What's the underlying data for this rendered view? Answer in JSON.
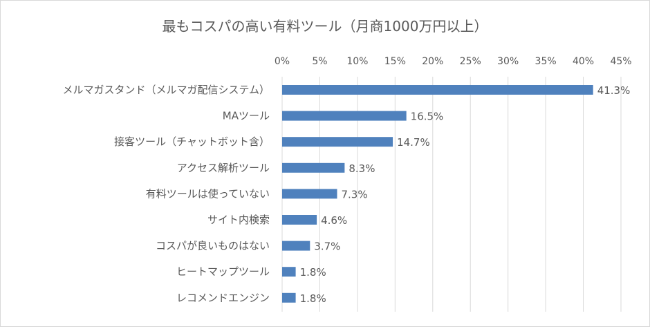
{
  "chart_data": {
    "type": "bar",
    "orientation": "horizontal",
    "title": "最もコスパの高い有料ツール（月商1000万円以上）",
    "categories": [
      "メルマガスタンド（メルマガ配信システム）",
      "MAツール",
      "接客ツール（チャットボット含）",
      "アクセス解析ツール",
      "有料ツールは使っていない",
      "サイト内検索",
      "コスパが良いものはない",
      "ヒートマップツール",
      "レコメンドエンジン"
    ],
    "values": [
      41.3,
      16.5,
      14.7,
      8.3,
      7.3,
      4.6,
      3.7,
      1.8,
      1.8
    ],
    "value_labels": [
      "41.3%",
      "16.5%",
      "14.7%",
      "8.3%",
      "7.3%",
      "4.6%",
      "3.7%",
      "1.8%",
      "1.8%"
    ],
    "xlim": [
      0,
      45
    ],
    "x_ticks": [
      0,
      5,
      10,
      15,
      20,
      25,
      30,
      35,
      40,
      45
    ],
    "x_tick_labels": [
      "0%",
      "5%",
      "10%",
      "15%",
      "20%",
      "25%",
      "30%",
      "35%",
      "40%",
      "45%"
    ],
    "x_axis_position": "top",
    "grid": true,
    "legend": "none",
    "bar_color": "#4f81bd",
    "grid_color": "#d9d9d9",
    "text_color": "#595959"
  }
}
